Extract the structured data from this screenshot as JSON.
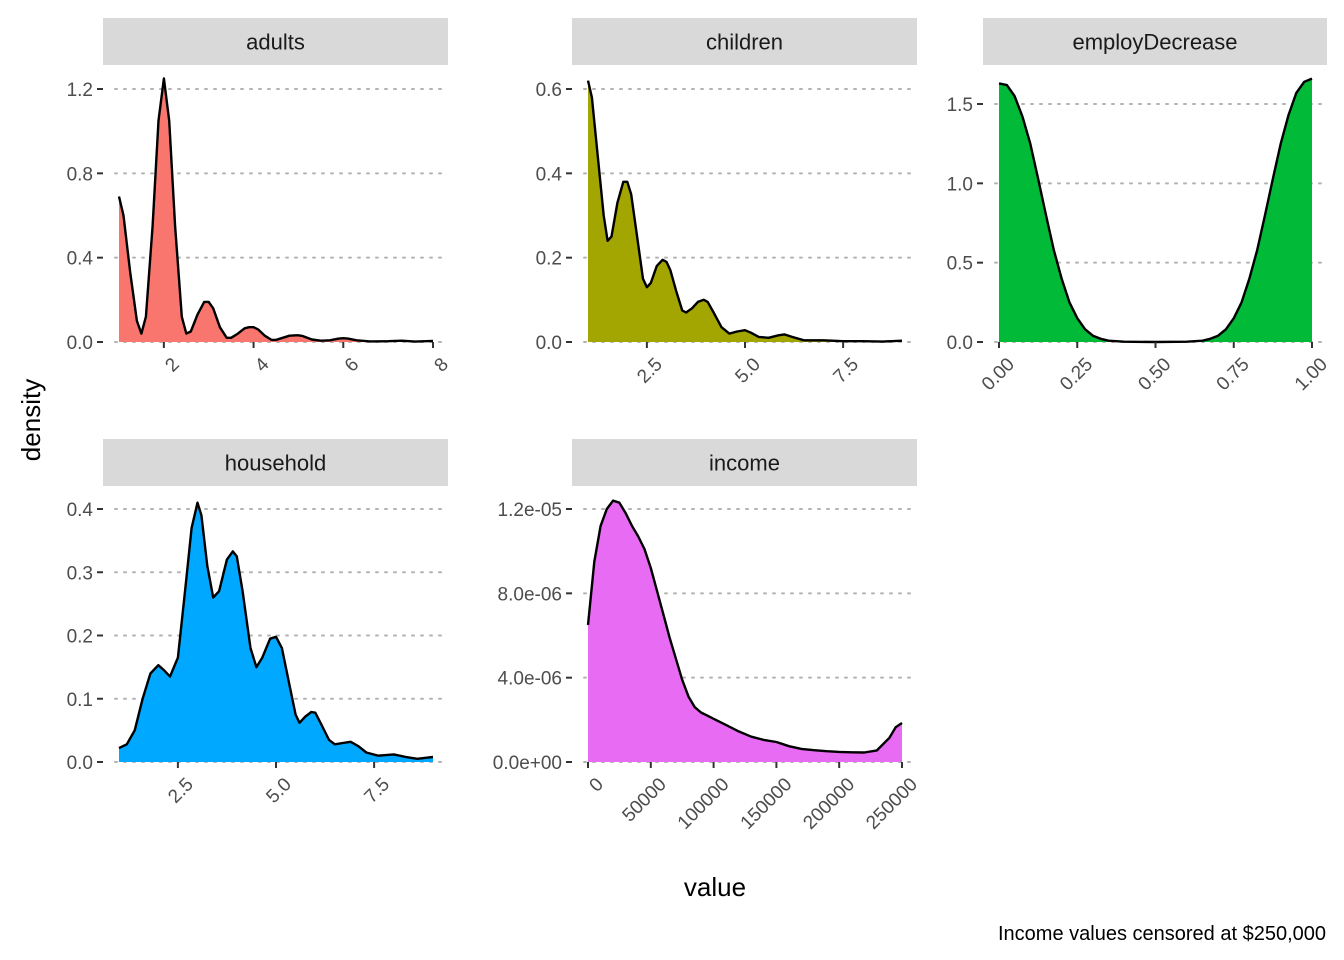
{
  "figure": {
    "x_title": "value",
    "y_title": "density",
    "caption": "Income values censored at $250,000"
  },
  "chart_data": [
    {
      "type": "area",
      "title": "adults",
      "fill": "#F8766D",
      "xlim": [
        1,
        8
      ],
      "ylim": [
        0,
        1.25
      ],
      "x_ticks": [
        2,
        4,
        6,
        8
      ],
      "x_tick_labels": [
        "2",
        "4",
        "6",
        "8"
      ],
      "y_ticks": [
        0,
        0.4,
        0.8,
        1.2
      ],
      "y_tick_labels": [
        "0.0",
        "0.4",
        "0.8",
        "1.2"
      ],
      "grid": "y-dotted",
      "points": [
        [
          1.0,
          0.69
        ],
        [
          1.1,
          0.6
        ],
        [
          1.25,
          0.33
        ],
        [
          1.4,
          0.1
        ],
        [
          1.5,
          0.04
        ],
        [
          1.6,
          0.12
        ],
        [
          1.75,
          0.55
        ],
        [
          1.88,
          1.05
        ],
        [
          2.0,
          1.25
        ],
        [
          2.12,
          1.05
        ],
        [
          2.25,
          0.55
        ],
        [
          2.4,
          0.12
        ],
        [
          2.5,
          0.04
        ],
        [
          2.6,
          0.05
        ],
        [
          2.75,
          0.13
        ],
        [
          2.9,
          0.19
        ],
        [
          3.0,
          0.19
        ],
        [
          3.1,
          0.16
        ],
        [
          3.25,
          0.07
        ],
        [
          3.4,
          0.02
        ],
        [
          3.5,
          0.02
        ],
        [
          3.65,
          0.04
        ],
        [
          3.8,
          0.065
        ],
        [
          3.9,
          0.07
        ],
        [
          4.0,
          0.07
        ],
        [
          4.1,
          0.06
        ],
        [
          4.25,
          0.03
        ],
        [
          4.4,
          0.01
        ],
        [
          4.5,
          0.01
        ],
        [
          4.65,
          0.02
        ],
        [
          4.8,
          0.03
        ],
        [
          4.95,
          0.032
        ],
        [
          5.0,
          0.032
        ],
        [
          5.1,
          0.028
        ],
        [
          5.3,
          0.012
        ],
        [
          5.5,
          0.006
        ],
        [
          5.7,
          0.008
        ],
        [
          5.9,
          0.016
        ],
        [
          6.0,
          0.018
        ],
        [
          6.1,
          0.016
        ],
        [
          6.3,
          0.008
        ],
        [
          6.6,
          0.003
        ],
        [
          7.0,
          0.004
        ],
        [
          7.3,
          0.006
        ],
        [
          7.6,
          0.002
        ],
        [
          8.0,
          0.005
        ]
      ]
    },
    {
      "type": "area",
      "title": "children",
      "fill": "#A3A500",
      "xlim": [
        1,
        9
      ],
      "ylim": [
        0,
        0.62
      ],
      "x_ticks": [
        2.5,
        5.0,
        7.5
      ],
      "x_tick_labels": [
        "2.5",
        "5.0",
        "7.5"
      ],
      "y_ticks": [
        0,
        0.2,
        0.4,
        0.6
      ],
      "y_tick_labels": [
        "0.0",
        "0.2",
        "0.4",
        "0.6"
      ],
      "grid": "y-dotted",
      "points": [
        [
          1.0,
          0.62
        ],
        [
          1.1,
          0.58
        ],
        [
          1.25,
          0.44
        ],
        [
          1.4,
          0.3
        ],
        [
          1.5,
          0.24
        ],
        [
          1.6,
          0.25
        ],
        [
          1.75,
          0.33
        ],
        [
          1.9,
          0.38
        ],
        [
          2.0,
          0.38
        ],
        [
          2.1,
          0.35
        ],
        [
          2.25,
          0.25
        ],
        [
          2.4,
          0.15
        ],
        [
          2.5,
          0.13
        ],
        [
          2.6,
          0.14
        ],
        [
          2.75,
          0.18
        ],
        [
          2.9,
          0.195
        ],
        [
          3.0,
          0.19
        ],
        [
          3.1,
          0.17
        ],
        [
          3.25,
          0.12
        ],
        [
          3.4,
          0.075
        ],
        [
          3.5,
          0.07
        ],
        [
          3.65,
          0.08
        ],
        [
          3.8,
          0.095
        ],
        [
          3.95,
          0.1
        ],
        [
          4.05,
          0.095
        ],
        [
          4.2,
          0.07
        ],
        [
          4.4,
          0.035
        ],
        [
          4.6,
          0.02
        ],
        [
          4.8,
          0.025
        ],
        [
          5.0,
          0.028
        ],
        [
          5.15,
          0.022
        ],
        [
          5.35,
          0.012
        ],
        [
          5.6,
          0.01
        ],
        [
          5.85,
          0.016
        ],
        [
          6.0,
          0.018
        ],
        [
          6.2,
          0.012
        ],
        [
          6.5,
          0.004
        ],
        [
          7.0,
          0.004
        ],
        [
          7.5,
          0.002
        ],
        [
          8.0,
          0.002
        ],
        [
          8.5,
          0.001
        ],
        [
          9.0,
          0.003
        ]
      ]
    },
    {
      "type": "area",
      "title": "employDecrease",
      "fill": "#00BA38",
      "xlim": [
        0,
        1
      ],
      "ylim": [
        0,
        1.65
      ],
      "x_ticks": [
        0,
        0.25,
        0.5,
        0.75,
        1
      ],
      "x_tick_labels": [
        "0.00",
        "0.25",
        "0.50",
        "0.75",
        "1.00"
      ],
      "y_ticks": [
        0,
        0.5,
        1.0,
        1.5
      ],
      "y_tick_labels": [
        "0.0",
        "0.5",
        "1.0",
        "1.5"
      ],
      "grid": "y-dotted",
      "points": [
        [
          0.0,
          1.63
        ],
        [
          0.025,
          1.62
        ],
        [
          0.05,
          1.55
        ],
        [
          0.075,
          1.42
        ],
        [
          0.1,
          1.25
        ],
        [
          0.125,
          1.03
        ],
        [
          0.15,
          0.8
        ],
        [
          0.175,
          0.58
        ],
        [
          0.2,
          0.4
        ],
        [
          0.225,
          0.25
        ],
        [
          0.25,
          0.15
        ],
        [
          0.275,
          0.08
        ],
        [
          0.3,
          0.04
        ],
        [
          0.325,
          0.02
        ],
        [
          0.35,
          0.008
        ],
        [
          0.4,
          0.002
        ],
        [
          0.5,
          0.0
        ],
        [
          0.6,
          0.002
        ],
        [
          0.65,
          0.008
        ],
        [
          0.675,
          0.02
        ],
        [
          0.7,
          0.04
        ],
        [
          0.725,
          0.08
        ],
        [
          0.75,
          0.15
        ],
        [
          0.775,
          0.25
        ],
        [
          0.8,
          0.4
        ],
        [
          0.825,
          0.58
        ],
        [
          0.85,
          0.8
        ],
        [
          0.875,
          1.03
        ],
        [
          0.9,
          1.25
        ],
        [
          0.925,
          1.43
        ],
        [
          0.95,
          1.57
        ],
        [
          0.975,
          1.64
        ],
        [
          1.0,
          1.66
        ]
      ]
    },
    {
      "type": "area",
      "title": "household",
      "fill": "#00A9FF",
      "xlim": [
        1,
        9
      ],
      "ylim": [
        0,
        0.41
      ],
      "x_ticks": [
        2.5,
        5.0,
        7.5
      ],
      "x_tick_labels": [
        "2.5",
        "5.0",
        "7.5"
      ],
      "y_ticks": [
        0,
        0.1,
        0.2,
        0.3,
        0.4
      ],
      "y_tick_labels": [
        "0.0",
        "0.1",
        "0.2",
        "0.3",
        "0.4"
      ],
      "grid": "y-dotted",
      "points": [
        [
          1.0,
          0.022
        ],
        [
          1.2,
          0.028
        ],
        [
          1.4,
          0.05
        ],
        [
          1.6,
          0.1
        ],
        [
          1.8,
          0.14
        ],
        [
          2.0,
          0.153
        ],
        [
          2.15,
          0.145
        ],
        [
          2.3,
          0.135
        ],
        [
          2.5,
          0.165
        ],
        [
          2.7,
          0.28
        ],
        [
          2.85,
          0.37
        ],
        [
          3.0,
          0.41
        ],
        [
          3.1,
          0.39
        ],
        [
          3.25,
          0.31
        ],
        [
          3.4,
          0.26
        ],
        [
          3.55,
          0.27
        ],
        [
          3.75,
          0.32
        ],
        [
          3.9,
          0.333
        ],
        [
          4.0,
          0.325
        ],
        [
          4.15,
          0.27
        ],
        [
          4.35,
          0.18
        ],
        [
          4.5,
          0.15
        ],
        [
          4.65,
          0.165
        ],
        [
          4.85,
          0.195
        ],
        [
          5.0,
          0.198
        ],
        [
          5.15,
          0.18
        ],
        [
          5.35,
          0.12
        ],
        [
          5.5,
          0.075
        ],
        [
          5.6,
          0.062
        ],
        [
          5.75,
          0.072
        ],
        [
          5.9,
          0.079
        ],
        [
          6.0,
          0.078
        ],
        [
          6.15,
          0.06
        ],
        [
          6.35,
          0.035
        ],
        [
          6.5,
          0.028
        ],
        [
          6.7,
          0.03
        ],
        [
          6.9,
          0.032
        ],
        [
          7.1,
          0.025
        ],
        [
          7.3,
          0.015
        ],
        [
          7.6,
          0.01
        ],
        [
          8.0,
          0.012
        ],
        [
          8.3,
          0.008
        ],
        [
          8.6,
          0.005
        ],
        [
          9.0,
          0.008
        ]
      ]
    },
    {
      "type": "area",
      "title": "income",
      "fill": "#E76BF3",
      "xlim": [
        0,
        250000
      ],
      "ylim": [
        0,
        1.26e-05
      ],
      "x_ticks": [
        0,
        50000,
        100000,
        150000,
        200000,
        250000
      ],
      "x_tick_labels": [
        "0",
        "50000",
        "100000",
        "150000",
        "200000",
        "250000"
      ],
      "y_ticks": [
        0,
        4e-06,
        8e-06,
        1.2e-05
      ],
      "y_tick_labels": [
        "0.0e+00",
        "4.0e-06",
        "8.0e-06",
        "1.2e-05"
      ],
      "grid": "y-dotted",
      "points": [
        [
          0,
          6.5e-06
        ],
        [
          5000,
          9.5e-06
        ],
        [
          10000,
          1.12e-05
        ],
        [
          15000,
          1.2e-05
        ],
        [
          20000,
          1.24e-05
        ],
        [
          25000,
          1.23e-05
        ],
        [
          30000,
          1.18e-05
        ],
        [
          35000,
          1.12e-05
        ],
        [
          40000,
          1.07e-05
        ],
        [
          45000,
          1.01e-05
        ],
        [
          50000,
          9.2e-06
        ],
        [
          55000,
          8.1e-06
        ],
        [
          60000,
          7e-06
        ],
        [
          65000,
          5.9e-06
        ],
        [
          70000,
          4.9e-06
        ],
        [
          75000,
          3.9e-06
        ],
        [
          80000,
          3.1e-06
        ],
        [
          85000,
          2.6e-06
        ],
        [
          90000,
          2.35e-06
        ],
        [
          95000,
          2.2e-06
        ],
        [
          100000,
          2.05e-06
        ],
        [
          110000,
          1.75e-06
        ],
        [
          120000,
          1.45e-06
        ],
        [
          130000,
          1.2e-06
        ],
        [
          140000,
          1.05e-06
        ],
        [
          150000,
          9.5e-07
        ],
        [
          160000,
          7.5e-07
        ],
        [
          170000,
          6.2e-07
        ],
        [
          180000,
          5.6e-07
        ],
        [
          190000,
          5.1e-07
        ],
        [
          200000,
          4.8e-07
        ],
        [
          210000,
          4.6e-07
        ],
        [
          220000,
          4.5e-07
        ],
        [
          230000,
          5.5e-07
        ],
        [
          240000,
          1.15e-06
        ],
        [
          245000,
          1.65e-06
        ],
        [
          250000,
          1.85e-06
        ]
      ]
    }
  ]
}
